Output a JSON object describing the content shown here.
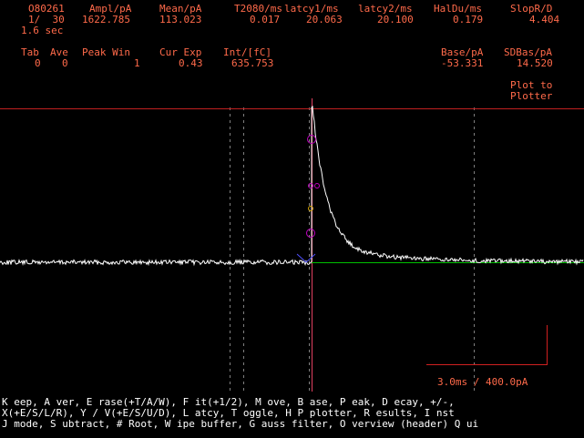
{
  "stats_row1": {
    "headers": [
      "O80261",
      "Ampl/pA",
      "Mean/pA",
      "T2080/ms",
      "latcy1/ms",
      "latcy2/ms",
      "HalDu/ms",
      "SlopR/D"
    ],
    "values": [
      "1/  30",
      "1622.785",
      "113.023",
      "0.017",
      "20.063",
      "20.100",
      "0.179",
      "4.404"
    ],
    "time": "1.6 sec"
  },
  "stats_row2": {
    "headers": [
      "Tab",
      "Ave",
      "Peak Win",
      "Cur Exp",
      "Int/[fC]"
    ],
    "values": [
      "0",
      "0",
      "1",
      "0.43",
      "635.753"
    ],
    "base_header": "Base/pA",
    "base_value": "-53.331",
    "sdbas_header": "SDBas/pA",
    "sdbas_value": "14.520"
  },
  "plot_button": {
    "line1": "Plot to",
    "line2": "Plotter"
  },
  "scale_bar": {
    "label": "3.0ms / 400.0pA"
  },
  "commands": {
    "line1": "K eep, A ver, E rase(+T/A/W), F it(+1/2), M ove, B ase, P eak, D ecay, +/-,",
    "line2": "X(+E/S/L/R), Y / V(+E/S/U/D), L atcy, T oggle, H P plotter, R esults, I nst",
    "line3": "J mode, S ubtract, # Root, W ipe buffer, G auss filter, O verview (header) Q ui"
  },
  "colors": {
    "text": "#ff6a4a",
    "trace": "#ffffff",
    "baseline": "#00c000",
    "cursor_h": "#c02020",
    "cursor_v": "#e04060",
    "markers": "#c000c0",
    "gridlines": "#808080",
    "scale": "#d02020"
  }
}
